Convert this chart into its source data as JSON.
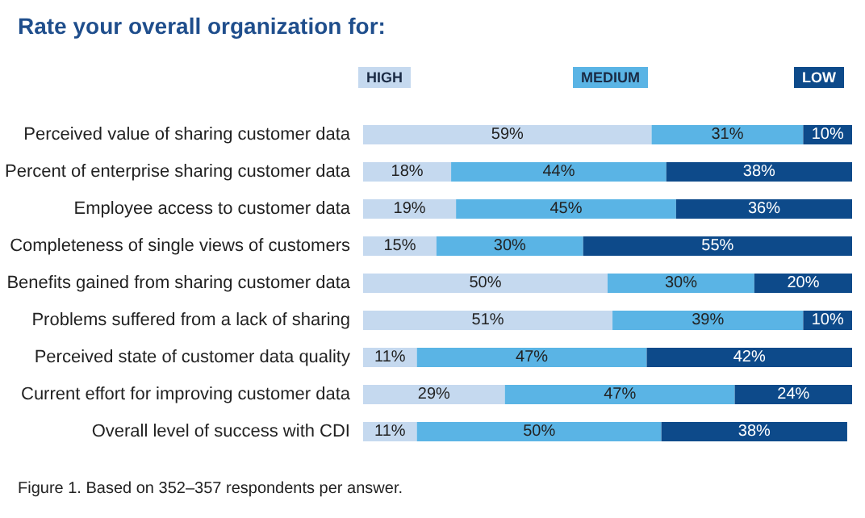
{
  "chart_data": {
    "type": "bar",
    "orientation": "horizontal",
    "stacked": true,
    "title": "Rate your overall organization for:",
    "categories": [
      "Perceived value of sharing customer data",
      "Percent of enterprise sharing customer data",
      "Employee access to customer data",
      "Completeness of single views of customers",
      "Benefits gained from sharing customer data",
      "Problems suffered from a lack of sharing",
      "Perceived state of customer data quality",
      "Current effort for improving customer data",
      "Overall level of success with CDI"
    ],
    "series": [
      {
        "name": "HIGH",
        "color": "#c5d9ef",
        "values": [
          59,
          18,
          19,
          15,
          50,
          51,
          11,
          29,
          11
        ],
        "value_labels": [
          "59%",
          "18%",
          "19%",
          "15%",
          "50%",
          "51%",
          "11%",
          "29%",
          "11%"
        ]
      },
      {
        "name": "MEDIUM",
        "color": "#5ab4e5",
        "values": [
          31,
          44,
          45,
          30,
          30,
          39,
          47,
          47,
          50
        ],
        "value_labels": [
          "31%",
          "44%",
          "45%",
          "30%",
          "30%",
          "39%",
          "47%",
          "47%",
          "50%"
        ]
      },
      {
        "name": "LOW",
        "color": "#0d4a8a",
        "values": [
          10,
          38,
          36,
          55,
          20,
          10,
          42,
          24,
          38
        ],
        "value_labels": [
          "10%",
          "38%",
          "36%",
          "55%",
          "20%",
          "10%",
          "42%",
          "24%",
          "38%"
        ]
      }
    ],
    "xlim": [
      0,
      100
    ],
    "tick_labels": "y",
    "grid": false,
    "legend": "top",
    "annotations": [
      "Figure 1. Based on 352–357 respondents per answer."
    ]
  }
}
